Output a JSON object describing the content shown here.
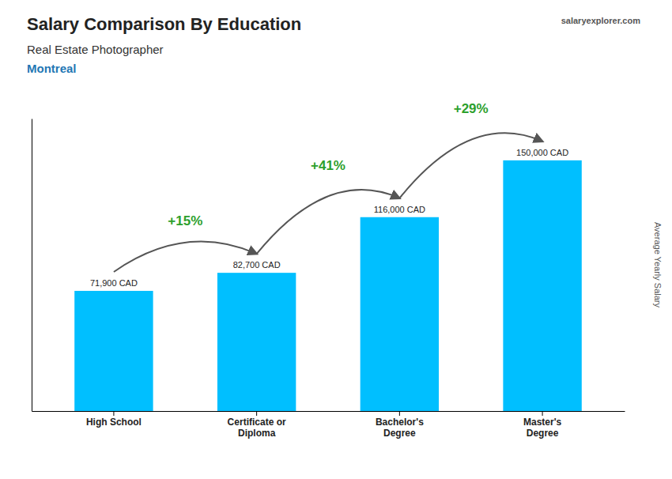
{
  "chart_data": {
    "type": "bar",
    "title": "Salary Comparison By Education",
    "subtitle": [
      "Real Estate Photographer",
      "Montreal"
    ],
    "ylabel": "Average Yearly Salary",
    "source": "salaryexplorer.com",
    "categories": [
      "High School",
      "Certificate or\nDiploma",
      "Bachelor's\nDegree",
      "Master's\nDegree"
    ],
    "values": [
      71900,
      82700,
      116000,
      150000
    ],
    "value_labels": [
      "71,900 CAD",
      "82,700 CAD",
      "116,000 CAD",
      "150,000 CAD"
    ],
    "annotations": [
      "+15%",
      "+41%",
      "+29%"
    ],
    "color": "#00bfff",
    "ylim": [
      0,
      175000
    ],
    "data_labels": true,
    "tick_labels": "x",
    "grid": false
  }
}
